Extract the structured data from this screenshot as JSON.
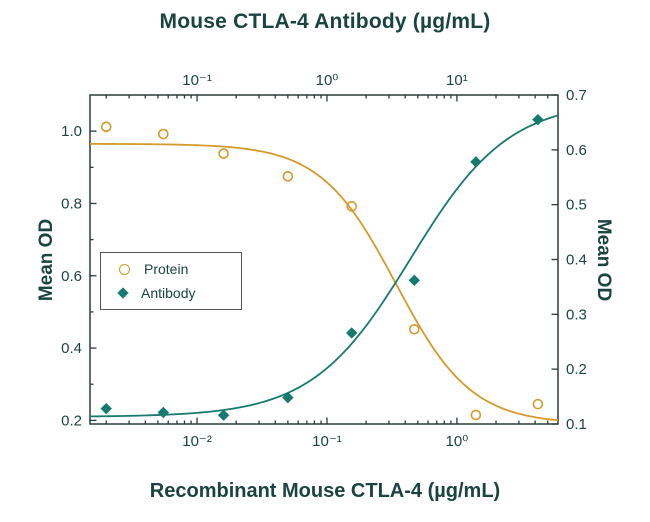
{
  "chart_data": {
    "type": "line",
    "title_top": "Mouse CTLA-4 Antibody (µg/mL)",
    "xlabel_bottom": "Recombinant Mouse CTLA-4 (µg/mL)",
    "ylabel_left": "Mean OD",
    "ylabel_right": "Mean OD",
    "axes": {
      "x_bottom": {
        "scale": "log",
        "min": 0.0015,
        "max": 6,
        "ticks": [
          {
            "v": 0.01,
            "label": "10⁻²"
          },
          {
            "v": 0.1,
            "label": "10⁻¹"
          },
          {
            "v": 1,
            "label": "10⁰"
          }
        ]
      },
      "x_top": {
        "scale": "log",
        "min": 0.015,
        "max": 60,
        "ticks": [
          {
            "v": 0.1,
            "label": "10⁻¹"
          },
          {
            "v": 1,
            "label": "10⁰"
          },
          {
            "v": 10,
            "label": "10¹"
          }
        ]
      },
      "y_left": {
        "min": 0.19,
        "max": 1.1,
        "major_ticks": [
          0.2,
          0.4,
          0.6,
          0.8,
          1.0
        ],
        "minor_ticks": [
          0.3,
          0.5,
          0.7,
          0.9
        ],
        "labels": [
          "0.2",
          "0.4",
          "0.6",
          "0.8",
          "1.0"
        ]
      },
      "y_right": {
        "min": 0.1,
        "max": 0.7,
        "major_ticks": [
          0.1,
          0.2,
          0.3,
          0.4,
          0.5,
          0.6,
          0.7
        ],
        "labels": [
          "0.1",
          "0.2",
          "0.3",
          "0.4",
          "0.5",
          "0.6",
          "0.7"
        ]
      }
    },
    "series": [
      {
        "name": "Protein",
        "marker": "open-circle",
        "color": "#D49A2A",
        "x_axis": "bottom",
        "y_axis": "left",
        "points": [
          [
            0.002,
            1.012
          ],
          [
            0.0055,
            0.992
          ],
          [
            0.016,
            0.938
          ],
          [
            0.05,
            0.875
          ],
          [
            0.155,
            0.792
          ],
          [
            0.47,
            0.452
          ],
          [
            1.4,
            0.215
          ],
          [
            4.2,
            0.245
          ]
        ],
        "curve": {
          "shape": "4PL",
          "direction": "decreasing",
          "top": 0.965,
          "bottom": 0.19,
          "ec50": 0.34,
          "hill": 1.5
        }
      },
      {
        "name": "Antibody",
        "marker": "filled-diamond",
        "color": "#187A6E",
        "x_axis": "top",
        "y_axis": "right",
        "points": [
          [
            0.02,
            0.128
          ],
          [
            0.055,
            0.121
          ],
          [
            0.16,
            0.116
          ],
          [
            0.5,
            0.148
          ],
          [
            1.55,
            0.266
          ],
          [
            4.7,
            0.362
          ],
          [
            14,
            0.578
          ],
          [
            42,
            0.655
          ]
        ],
        "curve": {
          "shape": "4PL",
          "direction": "increasing",
          "top": 0.69,
          "bottom": 0.113,
          "ec50": 4.4,
          "hill": 1.15
        }
      }
    ],
    "legend": {
      "position": "left-middle",
      "items": [
        "Protein",
        "Antibody"
      ]
    },
    "colors": {
      "text": "#1B4440",
      "axis": "#2A3B3B",
      "protein": "#D49A2A",
      "antibody": "#187A6E",
      "background": "#FFFFFF"
    }
  }
}
